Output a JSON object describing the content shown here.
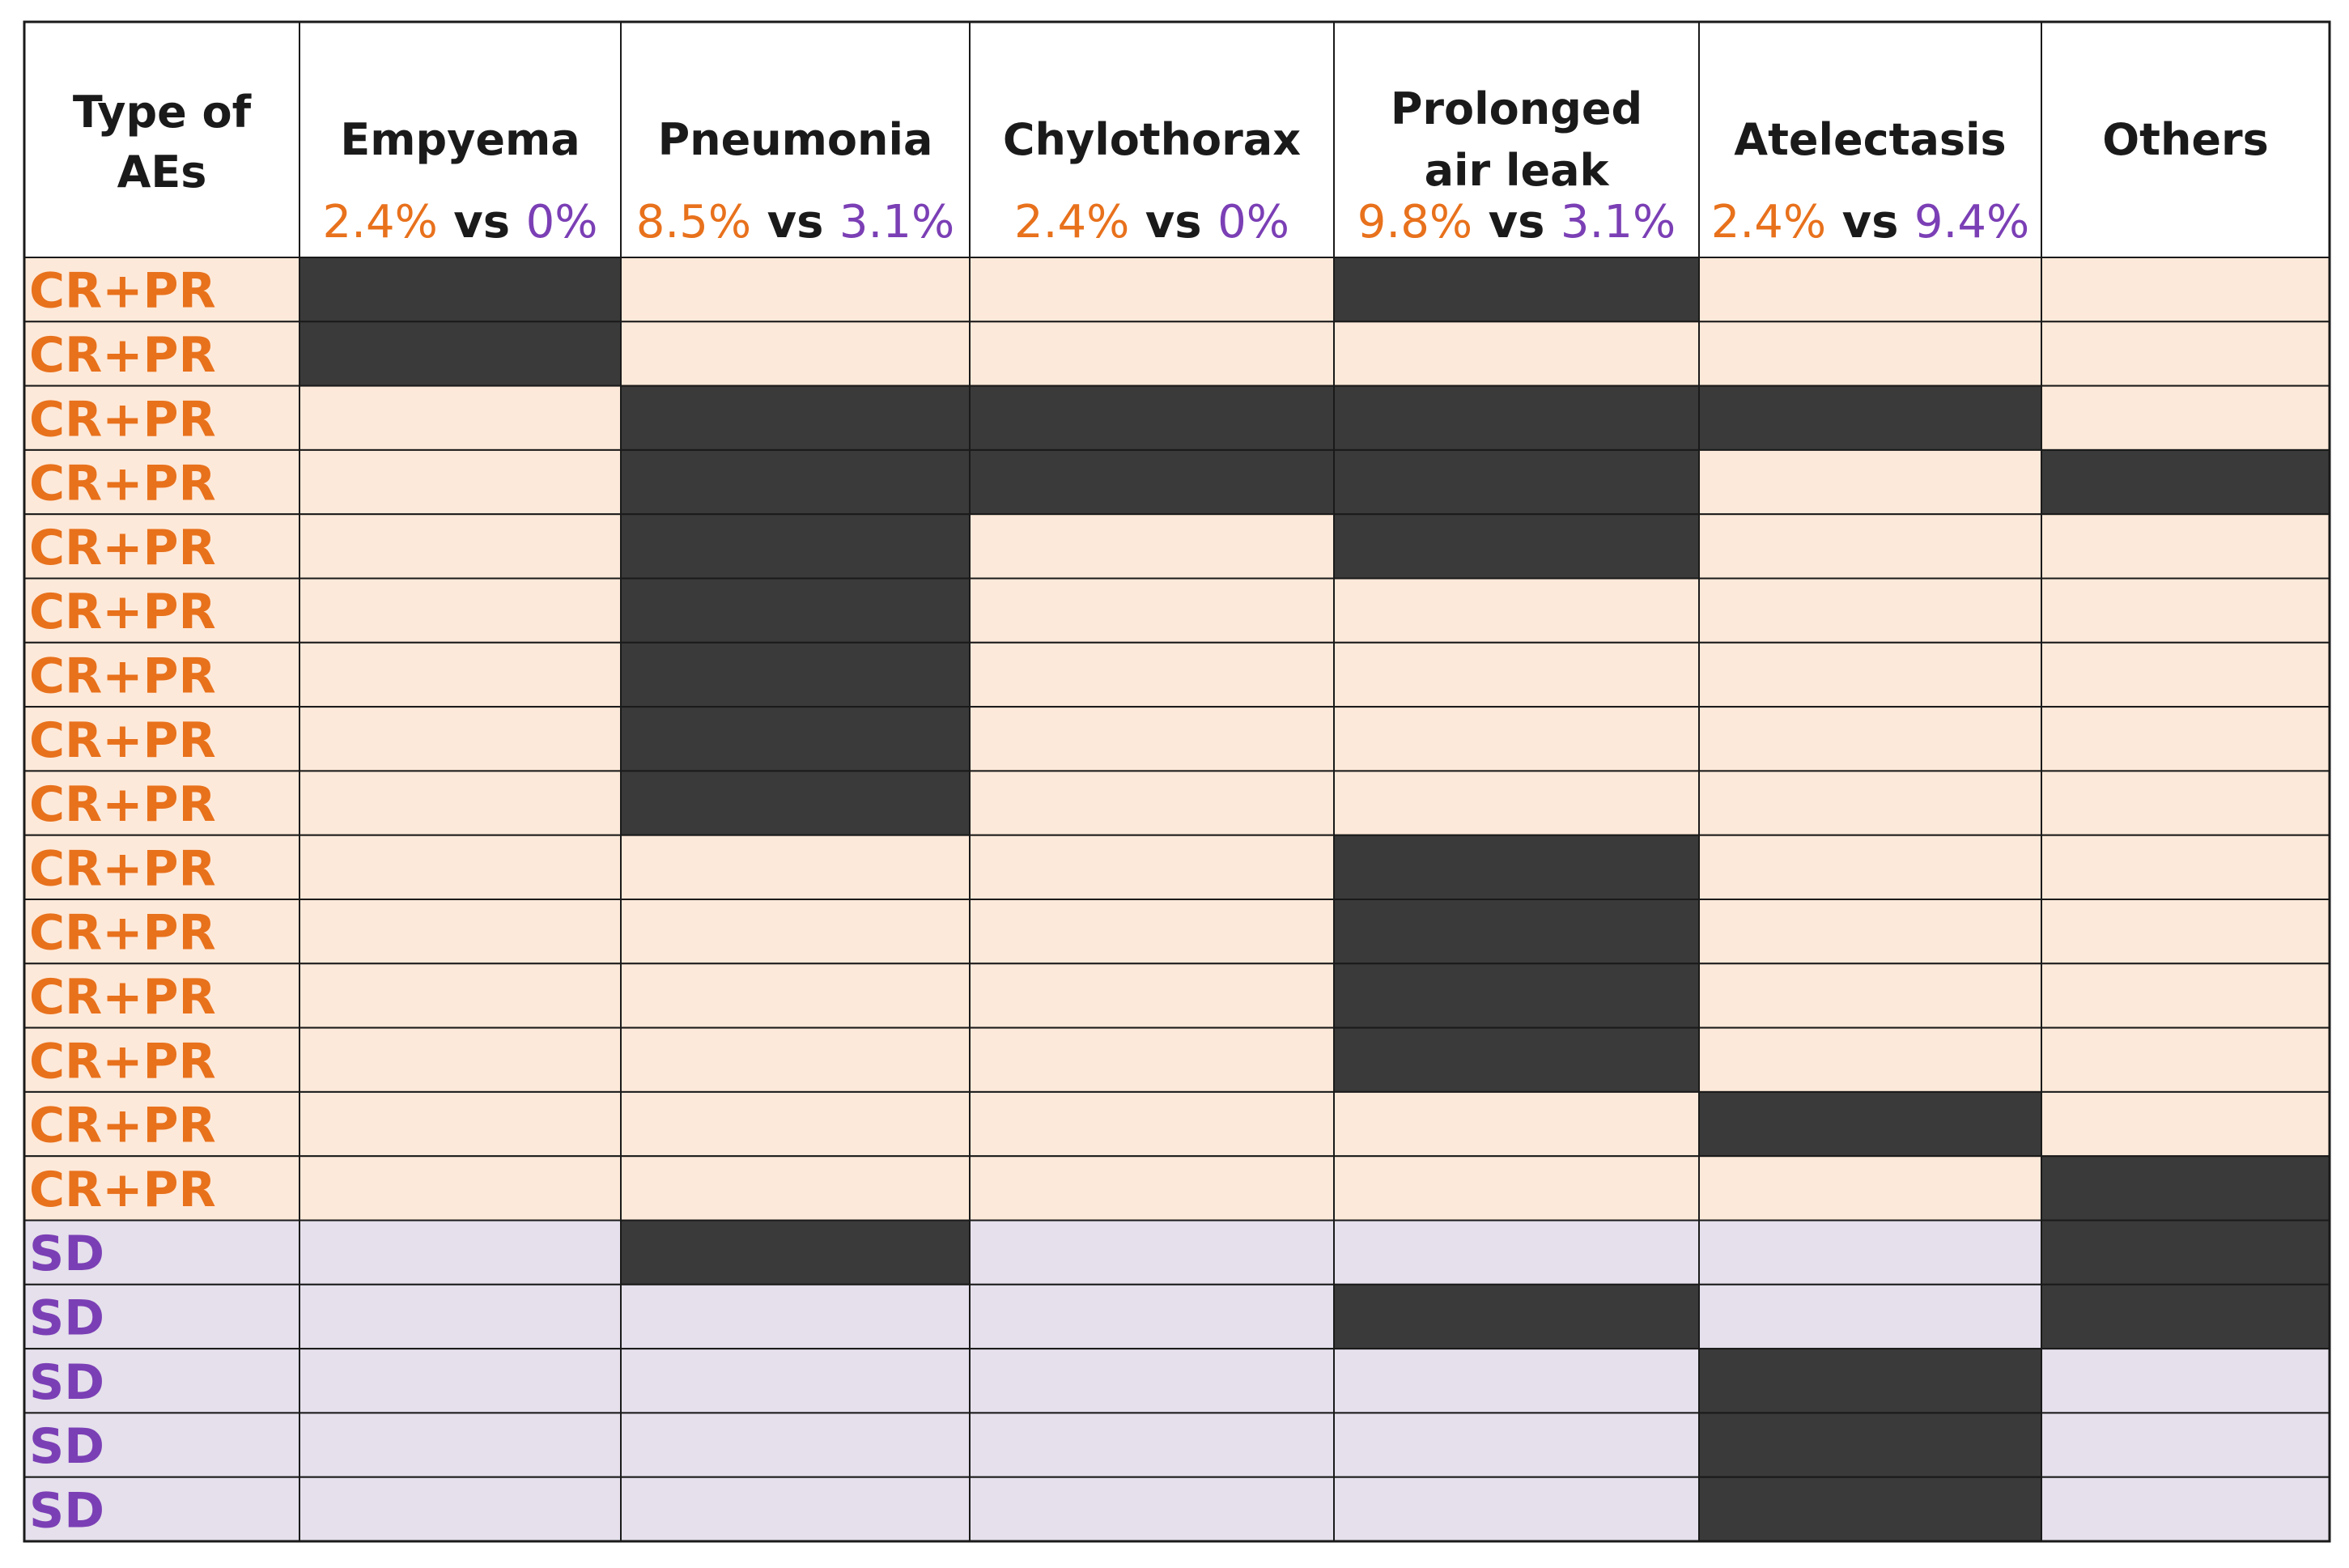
{
  "chart_data": {
    "type": "table",
    "corner_header": [
      "Type of",
      "AEs"
    ],
    "columns": [
      {
        "name": [
          "Empyema"
        ],
        "rate_a": "2.4%",
        "vs": "vs",
        "rate_b": "0%"
      },
      {
        "name": [
          "Pneumonia"
        ],
        "rate_a": "8.5%",
        "vs": "vs",
        "rate_b": "3.1%"
      },
      {
        "name": [
          "Chylothorax"
        ],
        "rate_a": "2.4%",
        "vs": "vs",
        "rate_b": "0%"
      },
      {
        "name": [
          "Prolonged",
          "air leak"
        ],
        "rate_a": "9.8%",
        "vs": "vs",
        "rate_b": "3.1%"
      },
      {
        "name": [
          "Atelectasis"
        ],
        "rate_a": "2.4%",
        "vs": "vs",
        "rate_b": "9.4%"
      },
      {
        "name": [
          "Others"
        ],
        "rate_a": "",
        "vs": "",
        "rate_b": ""
      }
    ],
    "rows": [
      {
        "group": "CR+PR",
        "events": [
          1,
          0,
          0,
          1,
          0,
          0
        ]
      },
      {
        "group": "CR+PR",
        "events": [
          1,
          0,
          0,
          0,
          0,
          0
        ]
      },
      {
        "group": "CR+PR",
        "events": [
          0,
          1,
          1,
          1,
          1,
          0
        ]
      },
      {
        "group": "CR+PR",
        "events": [
          0,
          1,
          1,
          1,
          0,
          1
        ]
      },
      {
        "group": "CR+PR",
        "events": [
          0,
          1,
          0,
          1,
          0,
          0
        ]
      },
      {
        "group": "CR+PR",
        "events": [
          0,
          1,
          0,
          0,
          0,
          0
        ]
      },
      {
        "group": "CR+PR",
        "events": [
          0,
          1,
          0,
          0,
          0,
          0
        ]
      },
      {
        "group": "CR+PR",
        "events": [
          0,
          1,
          0,
          0,
          0,
          0
        ]
      },
      {
        "group": "CR+PR",
        "events": [
          0,
          1,
          0,
          0,
          0,
          0
        ]
      },
      {
        "group": "CR+PR",
        "events": [
          0,
          0,
          0,
          1,
          0,
          0
        ]
      },
      {
        "group": "CR+PR",
        "events": [
          0,
          0,
          0,
          1,
          0,
          0
        ]
      },
      {
        "group": "CR+PR",
        "events": [
          0,
          0,
          0,
          1,
          0,
          0
        ]
      },
      {
        "group": "CR+PR",
        "events": [
          0,
          0,
          0,
          1,
          0,
          0
        ]
      },
      {
        "group": "CR+PR",
        "events": [
          0,
          0,
          0,
          0,
          1,
          0
        ]
      },
      {
        "group": "CR+PR",
        "events": [
          0,
          0,
          0,
          0,
          0,
          1
        ]
      },
      {
        "group": "SD",
        "events": [
          0,
          1,
          0,
          0,
          0,
          1
        ]
      },
      {
        "group": "SD",
        "events": [
          0,
          0,
          0,
          1,
          0,
          1
        ]
      },
      {
        "group": "SD",
        "events": [
          0,
          0,
          0,
          0,
          1,
          0
        ]
      },
      {
        "group": "SD",
        "events": [
          0,
          0,
          0,
          0,
          1,
          0
        ]
      },
      {
        "group": "SD",
        "events": [
          0,
          0,
          0,
          0,
          1,
          0
        ]
      }
    ],
    "colors": {
      "group_a_text": "#e8711c",
      "group_b_text": "#7b3fb5",
      "group_a_fill": "#fde9d9",
      "group_b_fill": "#e5e0ec",
      "event_fill": "#3a3a3a",
      "border": "#1a1a1a",
      "header_fill": "#ffffff",
      "header_text": "#1a1a1a"
    }
  }
}
